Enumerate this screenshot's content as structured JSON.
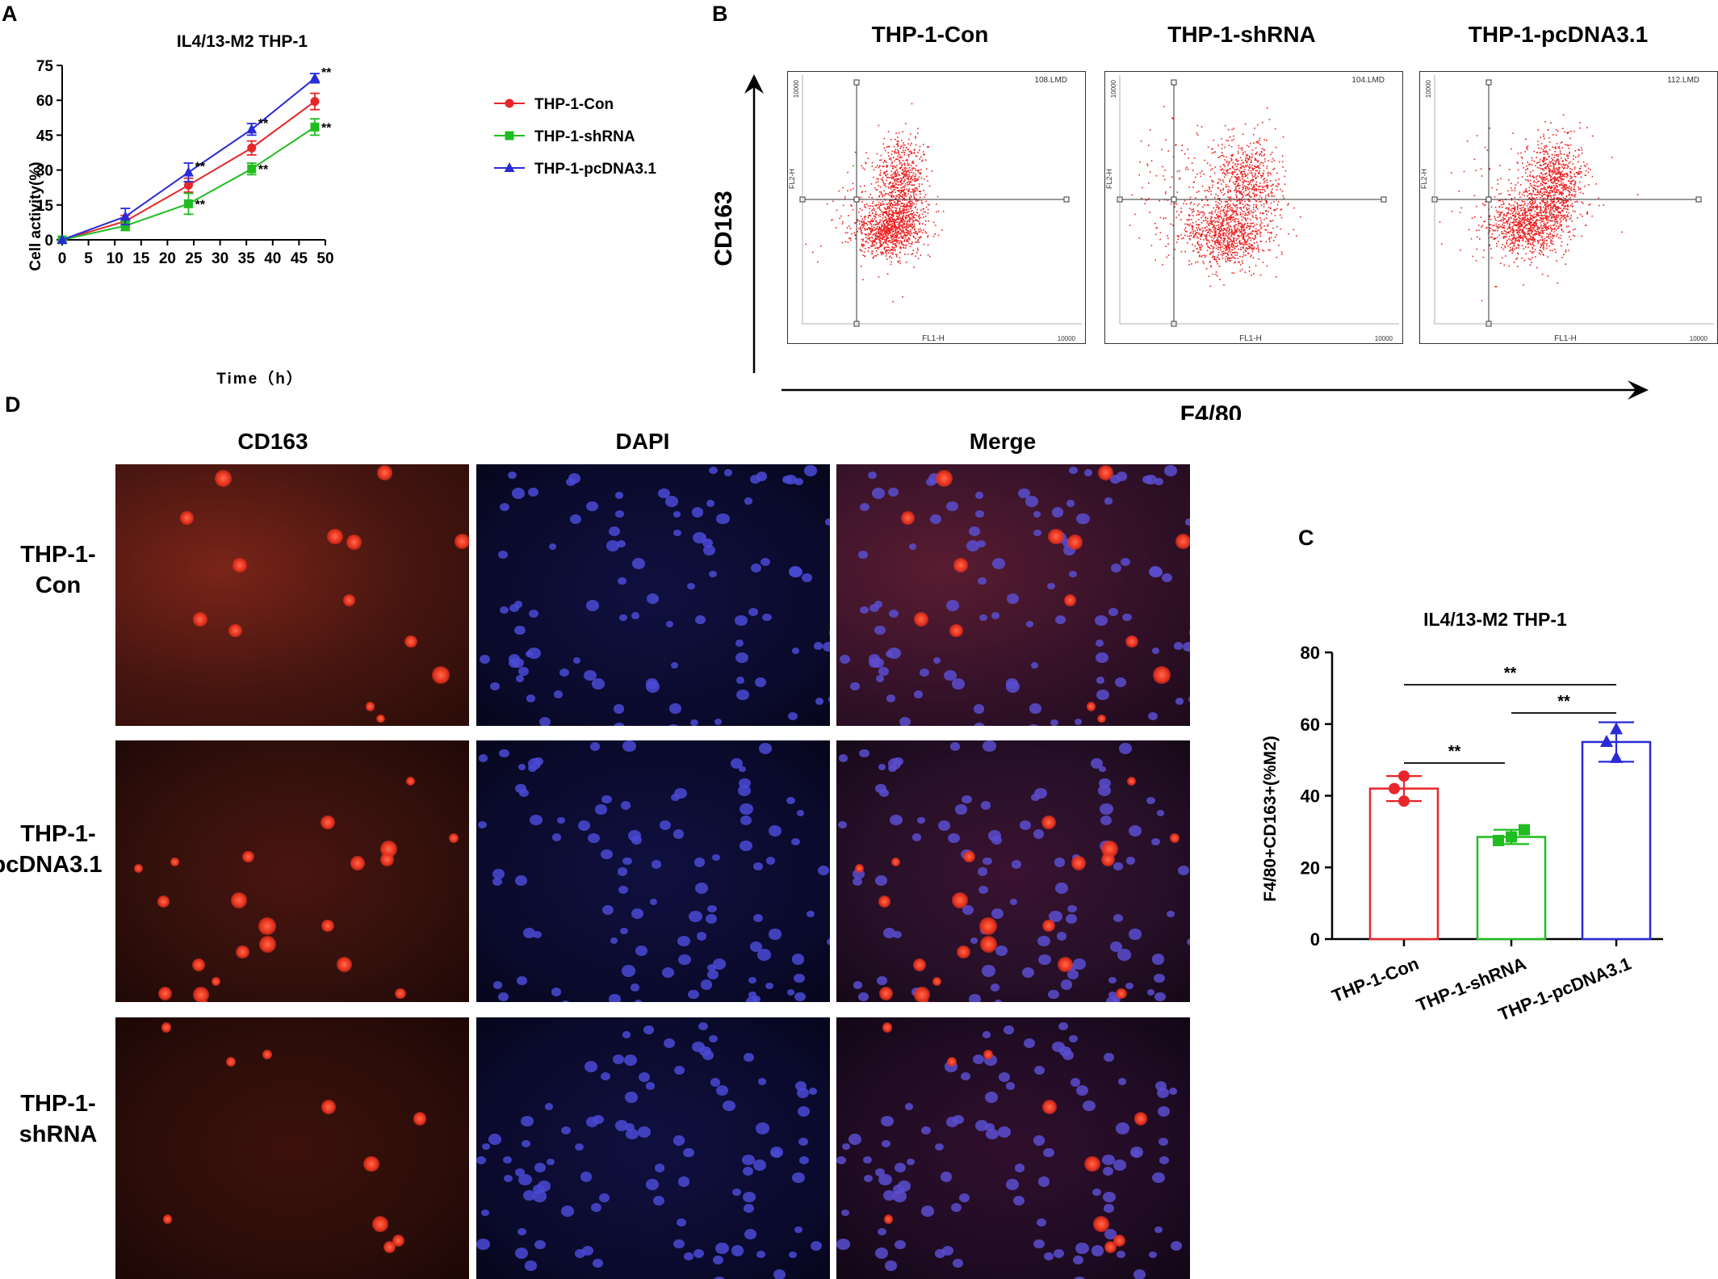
{
  "panel_letters": {
    "a": "A",
    "b": "B",
    "c": "C",
    "d": "D"
  },
  "colors": {
    "con": "#e8262a",
    "shrna": "#1fbd1f",
    "pcdna": "#2a2ad8",
    "axis": "#000000"
  },
  "chart_data": [
    {
      "id": "A",
      "type": "line",
      "title": "IL4/13-M2 THP-1",
      "xlabel": "Time（h）",
      "ylabel": "Cell activity(%)",
      "xlim": [
        0,
        50
      ],
      "ylim": [
        0,
        75
      ],
      "xticks": [
        "0",
        "5",
        "10",
        "15",
        "20",
        "25",
        "30",
        "35",
        "40",
        "45",
        "50"
      ],
      "yticks": [
        "0",
        "15",
        "30",
        "45",
        "60",
        "75"
      ],
      "x": [
        0,
        12,
        24,
        36,
        48
      ],
      "legend_position": "right",
      "series": [
        {
          "name": "THP-1-Con",
          "color": "#e8262a",
          "marker": "circle",
          "values": [
            0,
            8,
            23.5,
            39.5,
            59.5
          ],
          "errors": [
            0,
            2.5,
            3,
            3,
            3.5
          ],
          "sig": [
            "",
            "",
            "",
            "",
            ""
          ]
        },
        {
          "name": "THP-1-shRNA",
          "color": "#1fbd1f",
          "marker": "square",
          "values": [
            0,
            6,
            15.5,
            30.5,
            48.5
          ],
          "errors": [
            0,
            2,
            4.5,
            2.5,
            3.5
          ],
          "sig": [
            "",
            "",
            "**",
            "**",
            "**"
          ]
        },
        {
          "name": "THP-1-pcDNA3.1",
          "color": "#2a2ad8",
          "marker": "triangle",
          "values": [
            0,
            10,
            29,
            47.5,
            69.5
          ],
          "errors": [
            0,
            3.5,
            4,
            2.5,
            2
          ],
          "sig": [
            "",
            "",
            "**",
            "**",
            "**"
          ]
        }
      ]
    },
    {
      "id": "C",
      "type": "bar",
      "title": "IL4/13-M2 THP-1",
      "ylabel": "F4/80+CD163+(%M2)",
      "ylim": [
        0,
        80
      ],
      "yticks": [
        "0",
        "20",
        "40",
        "60",
        "80"
      ],
      "categories": [
        "THP-1-Con",
        "THP-1-shRNA",
        "THP-1-pcDNA3.1"
      ],
      "values": [
        42,
        28.5,
        55
      ],
      "errors": [
        3.5,
        2,
        5.5
      ],
      "points": [
        [
          45.5,
          42,
          38.5
        ],
        [
          27.5,
          28.5,
          30.5
        ],
        [
          58.5,
          55,
          50.5
        ]
      ],
      "significance": [
        {
          "from": 0,
          "to": 2,
          "label": "**"
        },
        {
          "from": 1,
          "to": 2,
          "label": "**"
        },
        {
          "from": 0,
          "to": 1,
          "label": "**"
        }
      ]
    }
  ],
  "flow": {
    "y_label": "CD163",
    "x_label": "F4/80",
    "plots": [
      {
        "title": "THP-1-Con",
        "file": "108.LMD",
        "x_axis": "FL1-H",
        "y_axis": "FL2-H",
        "x_max": "10000",
        "y_max": "10000"
      },
      {
        "title": "THP-1-shRNA",
        "file": "104.LMD",
        "x_axis": "FL1-H",
        "y_axis": "FL2-H",
        "x_max": "10000",
        "y_max": "10000"
      },
      {
        "title": "THP-1-pcDNA3.1",
        "file": "112.LMD",
        "x_axis": "FL1-H",
        "y_axis": "FL2-H",
        "x_max": "10000",
        "y_max": "10000"
      }
    ]
  },
  "micro": {
    "columns": [
      "CD163",
      "DAPI",
      "Merge"
    ],
    "rows": [
      {
        "line1": "THP-1-",
        "line2": "Con"
      },
      {
        "line1": "THP-1-",
        "line2": "pcDNA3.1"
      },
      {
        "line1": "THP-1-",
        "line2": "shRNA"
      }
    ]
  }
}
